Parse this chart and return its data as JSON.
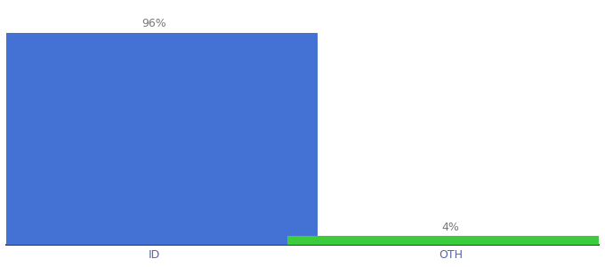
{
  "categories": [
    "ID",
    "OTH"
  ],
  "values": [
    96,
    4
  ],
  "bar_colors": [
    "#4472d4",
    "#3dcc3d"
  ],
  "label_texts": [
    "96%",
    "4%"
  ],
  "background_color": "#ffffff",
  "ylim": [
    0,
    108
  ],
  "bar_width": 0.55,
  "x_positions": [
    0.25,
    0.75
  ],
  "xlim": [
    0.0,
    1.0
  ],
  "label_fontsize": 9,
  "tick_fontsize": 9,
  "label_color": "#777777",
  "tick_color": "#5566aa"
}
